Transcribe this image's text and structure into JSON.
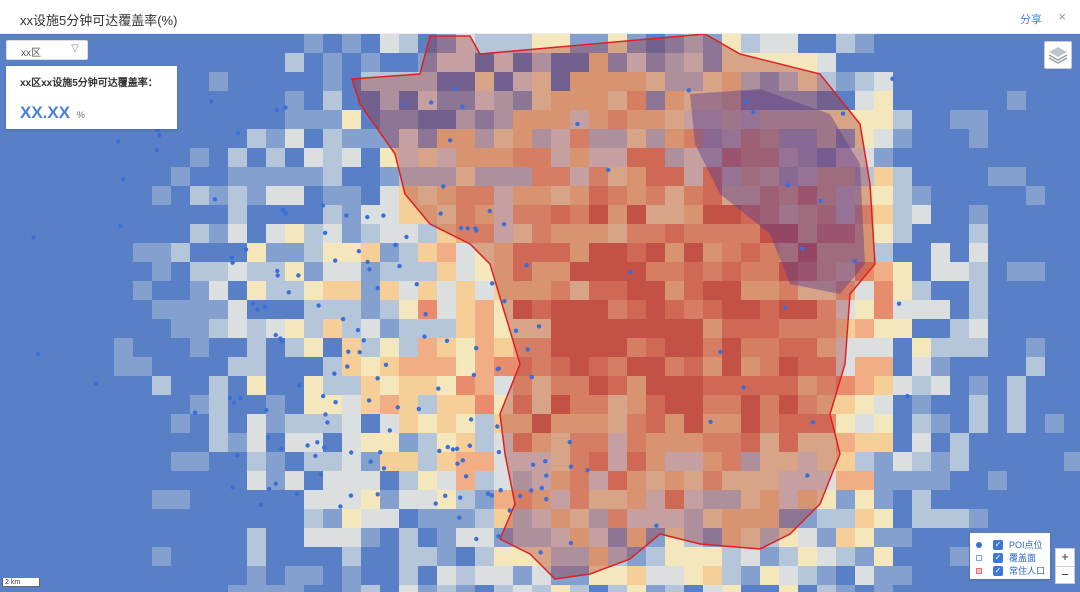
{
  "window": {
    "title": "xx设施5分钟可达覆盖率(%)",
    "share_label": "分享",
    "close_glyph": "×"
  },
  "district_select": {
    "value": "xx区",
    "chevron": "▽"
  },
  "stat_card": {
    "label": "xx区xx设施5分钟可达覆盖率：",
    "value": "XX.XX",
    "unit": "%"
  },
  "layers_button": {
    "icon": "layers-icon"
  },
  "legend": {
    "items": [
      {
        "label": "POI点位",
        "symbol": "dot",
        "color": "#3a6fd8",
        "checked": true
      },
      {
        "label": "覆盖面",
        "symbol": "square",
        "color": "#7fa6e0",
        "checked": true
      },
      {
        "label": "常住人口",
        "symbol": "square",
        "color": "#e57373",
        "checked": true
      }
    ]
  },
  "zoom": {
    "in": "+",
    "out": "−"
  },
  "scale": {
    "label": "2 km"
  },
  "colors": {
    "heat_low": "#3f6fc7",
    "heat_high": "#d73027",
    "coverage_outline": "#e02020",
    "poi": "#3a6fd8"
  }
}
